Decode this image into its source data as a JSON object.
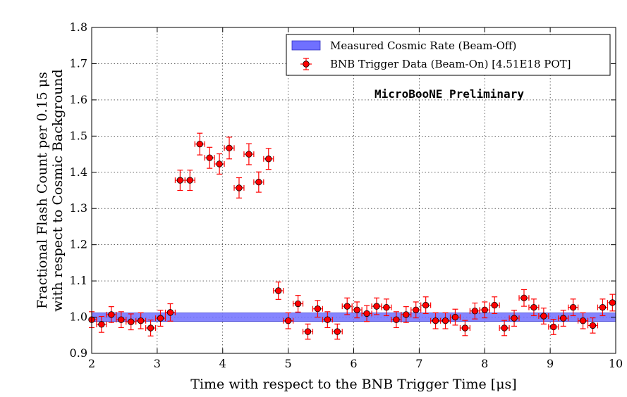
{
  "chart_data": {
    "type": "scatter",
    "title": "",
    "xlabel": "Time with respect to the BNB Trigger Time [μs]",
    "ylabel_line1": "Fractional Flash Count per 0.15 μs",
    "ylabel_line2": "with respect to Cosmic Background",
    "xlim": [
      2,
      10
    ],
    "ylim": [
      0.9,
      1.8
    ],
    "x_ticks": [
      2,
      3,
      4,
      5,
      6,
      7,
      8,
      9,
      10
    ],
    "x_tick_labels": [
      "2",
      "3",
      "4",
      "5",
      "6",
      "7",
      "8",
      "9",
      "10"
    ],
    "y_ticks": [
      0.9,
      1.0,
      1.1,
      1.2,
      1.3,
      1.4,
      1.5,
      1.6,
      1.7,
      1.8
    ],
    "y_tick_labels": [
      "0.9",
      "1.0",
      "1.1",
      "1.2",
      "1.3",
      "1.4",
      "1.5",
      "1.6",
      "1.7",
      "1.8"
    ],
    "grid": true,
    "legend_position": "top-right",
    "annotation": "MicroBooNE Preliminary",
    "band": {
      "name": "Measured Cosmic Rate (Beam-Off)",
      "y_low": 0.988,
      "y_high": 1.012,
      "color": "#7070ff"
    },
    "series": [
      {
        "name": "BNB Trigger Data (Beam-On) [4.51E18 POT]",
        "color": "#ff0000",
        "x_error": 0.075,
        "x": [
          2.0,
          2.15,
          2.3,
          2.45,
          2.6,
          2.75,
          2.9,
          3.05,
          3.2,
          3.35,
          3.5,
          3.65,
          3.8,
          3.95,
          4.1,
          4.25,
          4.4,
          4.55,
          4.7,
          4.85,
          5.0,
          5.15,
          5.3,
          5.45,
          5.6,
          5.75,
          5.9,
          6.05,
          6.2,
          6.35,
          6.5,
          6.65,
          6.8,
          6.95,
          7.1,
          7.25,
          7.4,
          7.55,
          7.7,
          7.85,
          8.0,
          8.15,
          8.3,
          8.45,
          8.6,
          8.75,
          8.9,
          9.05,
          9.2,
          9.35,
          9.5,
          9.65,
          9.8,
          9.95
        ],
        "y": [
          0.993,
          0.98,
          1.007,
          0.993,
          0.987,
          0.99,
          0.97,
          0.997,
          1.013,
          1.378,
          1.378,
          1.478,
          1.44,
          1.423,
          1.467,
          1.357,
          1.45,
          1.373,
          1.437,
          1.073,
          0.99,
          1.037,
          0.96,
          1.023,
          0.993,
          0.96,
          1.03,
          1.02,
          1.01,
          1.03,
          1.027,
          0.993,
          1.007,
          1.02,
          1.033,
          0.99,
          0.99,
          1.0,
          0.97,
          1.017,
          1.02,
          1.033,
          0.97,
          0.997,
          1.053,
          1.027,
          1.003,
          0.973,
          0.997,
          1.027,
          0.99,
          0.977,
          1.027,
          1.04
        ],
        "y_error": [
          0.022,
          0.022,
          0.022,
          0.022,
          0.022,
          0.022,
          0.022,
          0.022,
          0.024,
          0.028,
          0.028,
          0.03,
          0.029,
          0.028,
          0.03,
          0.028,
          0.029,
          0.028,
          0.029,
          0.024,
          0.022,
          0.023,
          0.021,
          0.023,
          0.022,
          0.021,
          0.023,
          0.022,
          0.022,
          0.023,
          0.023,
          0.022,
          0.022,
          0.022,
          0.023,
          0.022,
          0.022,
          0.022,
          0.021,
          0.022,
          0.022,
          0.023,
          0.021,
          0.022,
          0.023,
          0.023,
          0.022,
          0.021,
          0.022,
          0.023,
          0.022,
          0.021,
          0.023,
          0.023
        ]
      }
    ]
  }
}
